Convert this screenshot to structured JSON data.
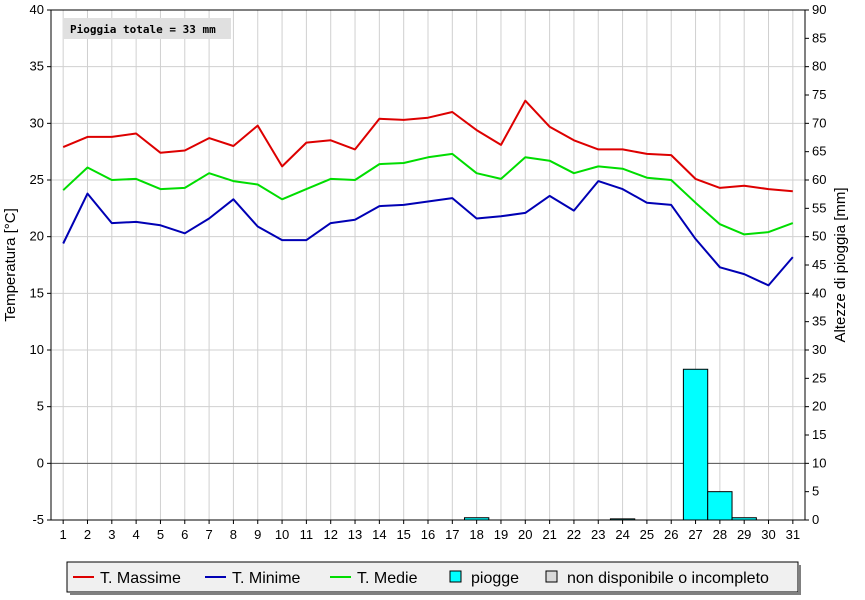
{
  "chart_data": {
    "type": "line",
    "annotation": "Pioggia totale = 33 mm",
    "ylabel": "Temperatura [°C]",
    "y2label": "Altezze di pioggia [mm]",
    "ylim": [
      -5,
      40
    ],
    "y2lim": [
      0,
      90
    ],
    "yticks": [
      "-5",
      "0",
      "5",
      "10",
      "15",
      "20",
      "25",
      "30",
      "35",
      "40"
    ],
    "y2ticks": [
      "0",
      "5",
      "10",
      "15",
      "20",
      "25",
      "30",
      "35",
      "40",
      "45",
      "50",
      "55",
      "60",
      "65",
      "70",
      "75",
      "80",
      "85",
      "90"
    ],
    "x": [
      "1",
      "2",
      "3",
      "4",
      "5",
      "6",
      "7",
      "8",
      "9",
      "10",
      "11",
      "12",
      "13",
      "14",
      "15",
      "16",
      "17",
      "18",
      "19",
      "20",
      "21",
      "22",
      "23",
      "24",
      "25",
      "26",
      "27",
      "28",
      "29",
      "30",
      "31"
    ],
    "grid": true,
    "legend_position": "bottom",
    "series": [
      {
        "name": "T. Massime",
        "color": "#dd0000",
        "axis": "left",
        "values": [
          27.9,
          28.8,
          28.8,
          29.1,
          27.4,
          27.6,
          28.7,
          28.0,
          29.8,
          26.2,
          28.3,
          28.5,
          27.7,
          30.4,
          30.3,
          30.5,
          31.0,
          29.4,
          28.1,
          32.0,
          29.7,
          28.5,
          27.7,
          27.7,
          27.3,
          27.2,
          25.1,
          24.3,
          24.5,
          24.2,
          24.0
        ]
      },
      {
        "name": "T. Minime",
        "color": "#0000b4",
        "axis": "left",
        "values": [
          19.4,
          23.8,
          21.2,
          21.3,
          21.0,
          20.3,
          21.6,
          23.3,
          20.9,
          19.7,
          19.7,
          21.2,
          21.5,
          22.7,
          22.8,
          23.1,
          23.4,
          21.6,
          21.8,
          22.1,
          23.6,
          22.3,
          24.9,
          24.2,
          23.0,
          22.8,
          19.8,
          17.3,
          16.7,
          15.7,
          18.2
        ]
      },
      {
        "name": "T. Medie",
        "color": "#00dd00",
        "axis": "left",
        "values": [
          24.1,
          26.1,
          25.0,
          25.1,
          24.2,
          24.3,
          25.6,
          24.9,
          24.6,
          23.3,
          24.2,
          25.1,
          25.0,
          26.4,
          26.5,
          27.0,
          27.3,
          25.6,
          25.1,
          27.0,
          26.7,
          25.6,
          26.2,
          26.0,
          25.2,
          25.0,
          23.0,
          21.1,
          20.2,
          20.4,
          21.2
        ]
      },
      {
        "name": "piogge",
        "color": "#00ffff",
        "axis": "right",
        "type": "bar",
        "values": [
          0,
          0,
          0,
          0,
          0,
          0,
          0,
          0,
          0,
          0,
          0,
          0,
          0,
          0,
          0,
          0,
          0,
          0.4,
          0,
          0,
          0,
          0,
          0,
          0.2,
          0,
          0,
          26.6,
          5.0,
          0.4,
          0,
          0
        ]
      }
    ],
    "legend": [
      {
        "label": "T. Massime",
        "kind": "line",
        "color": "#dd0000"
      },
      {
        "label": "T. Minime",
        "kind": "line",
        "color": "#0000b4"
      },
      {
        "label": "T. Medie",
        "kind": "line",
        "color": "#00dd00"
      },
      {
        "label": "piogge",
        "kind": "box",
        "color": "#00ffff"
      },
      {
        "label": "non disponibile o incompleto",
        "kind": "box",
        "color": "#d8d8d8"
      }
    ]
  }
}
